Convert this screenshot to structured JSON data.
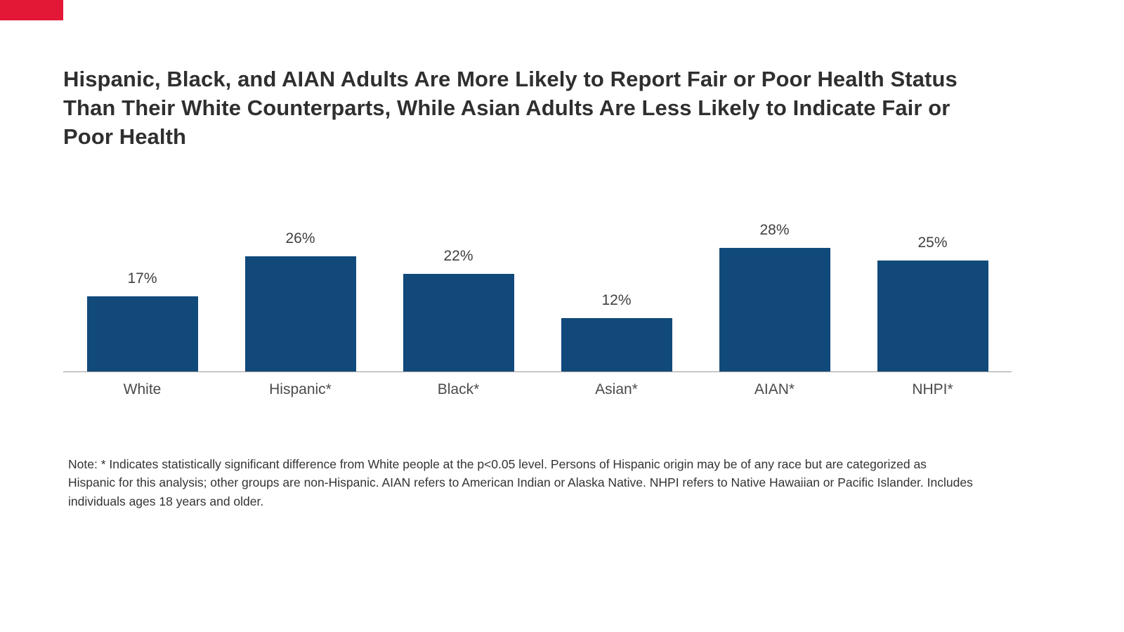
{
  "page": {
    "title": "Hispanic, Black, and AIAN Adults Are More Likely to Report Fair or Poor Health Status Than Their White Counterparts, While Asian Adults Are Less Likely to Indicate Fair or Poor Health",
    "note": "Note: * Indicates statistically significant difference from White people at the p<0.05 level. Persons of Hispanic origin may be of any race but are categorized as Hispanic for this analysis; other groups are non-Hispanic. AIAN refers to American Indian or Alaska Native. NHPI refers to Native Hawaiian or Pacific Islander. Includes individuals ages 18 years and older."
  },
  "colors": {
    "bar": "#11497b",
    "accent_red": "#e31837",
    "title_text": "#2f2f2f",
    "label_text": "#404040",
    "axis_line": "#9a9a9a"
  },
  "chart_data": {
    "type": "bar",
    "categories": [
      "White",
      "Hispanic*",
      "Black*",
      "Asian*",
      "AIAN*",
      "NHPI*"
    ],
    "values": [
      17,
      26,
      22,
      12,
      28,
      25
    ],
    "value_labels": [
      "17%",
      "26%",
      "22%",
      "12%",
      "28%",
      "25%"
    ],
    "title": "Hispanic, Black, and AIAN Adults Are More Likely to Report Fair or Poor Health Status Than Their White Counterparts, While Asian Adults Are Less Likely to Indicate Fair or Poor Health",
    "xlabel": "",
    "ylabel": "",
    "ylim": [
      0,
      30
    ],
    "grid": false,
    "legend": "none",
    "bar_color": "#11497b"
  }
}
